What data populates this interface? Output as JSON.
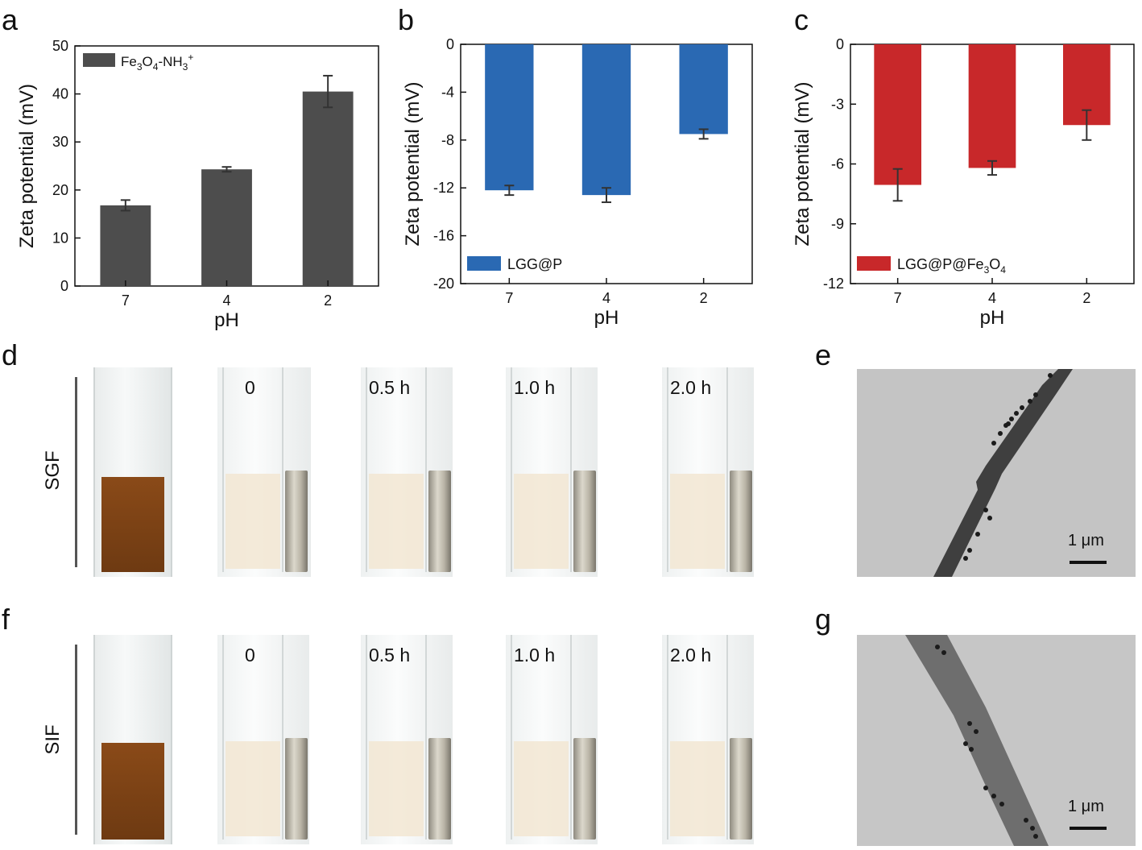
{
  "panels": {
    "a": "a",
    "b": "b",
    "c": "c",
    "d": "d",
    "e": "e",
    "f": "f",
    "g": "g"
  },
  "chart_data": [
    {
      "type": "bar",
      "panel": "a",
      "categories": [
        "7",
        "4",
        "2"
      ],
      "values": [
        16.8,
        24.3,
        40.5
      ],
      "errors": [
        1.1,
        0.5,
        3.3
      ],
      "color": "#4d4d4d",
      "xlabel": "pH",
      "ylabel": "Zeta potential (mV)",
      "ylim": [
        0,
        50
      ],
      "yticks": [
        0,
        10,
        20,
        30,
        40,
        50
      ],
      "legend": "Fe3O4-NH3+",
      "legend_placement": "top-left"
    },
    {
      "type": "bar",
      "panel": "b",
      "categories": [
        "7",
        "4",
        "2"
      ],
      "values": [
        -12.2,
        -12.6,
        -7.5
      ],
      "errors": [
        0.4,
        0.6,
        0.4
      ],
      "color": "#2a69b3",
      "xlabel": "pH",
      "ylabel": "Zeta potential (mV)",
      "ylim": [
        -20,
        0
      ],
      "yticks": [
        0,
        -4,
        -8,
        -12,
        -16,
        -20
      ],
      "legend": "LGG@P",
      "legend_placement": "bottom-left"
    },
    {
      "type": "bar",
      "panel": "c",
      "categories": [
        "7",
        "4",
        "2"
      ],
      "values": [
        -7.05,
        -6.2,
        -4.05
      ],
      "errors": [
        0.8,
        0.35,
        0.75
      ],
      "color": "#c8282a",
      "xlabel": "pH",
      "ylabel": "Zeta potential (mV)",
      "ylim": [
        -12,
        0
      ],
      "yticks": [
        0,
        -3,
        -6,
        -9,
        -12
      ],
      "legend": "LGG@P@Fe3O4",
      "legend_placement": "bottom-left"
    }
  ],
  "legend_parts": {
    "a": {
      "p1": "Fe",
      "s1": "3",
      "p2": "O",
      "s2": "4",
      "p3": "-NH",
      "s3": "3",
      "sup": "+"
    },
    "c": {
      "p1": "LGG@P@Fe",
      "s1": "3",
      "p2": "O",
      "s2": "4"
    }
  },
  "photos": {
    "rows": [
      {
        "label": "SGF",
        "times": [
          "0",
          "0.5 h",
          "1.0 h",
          "2.0 h"
        ]
      },
      {
        "label": "SIF",
        "times": [
          "0",
          "0.5 h",
          "1.0 h",
          "2.0 h"
        ]
      }
    ]
  },
  "tem": {
    "scale_e": "1 μm",
    "scale_g": "1 μm"
  },
  "colors": {
    "suspension": "#8a4a18",
    "clear_liquid": "#f2e6d2",
    "magnet": "#b9b4a6",
    "tem_bg": "#bdbdbd",
    "tem_rod": "#3c3c3c"
  }
}
